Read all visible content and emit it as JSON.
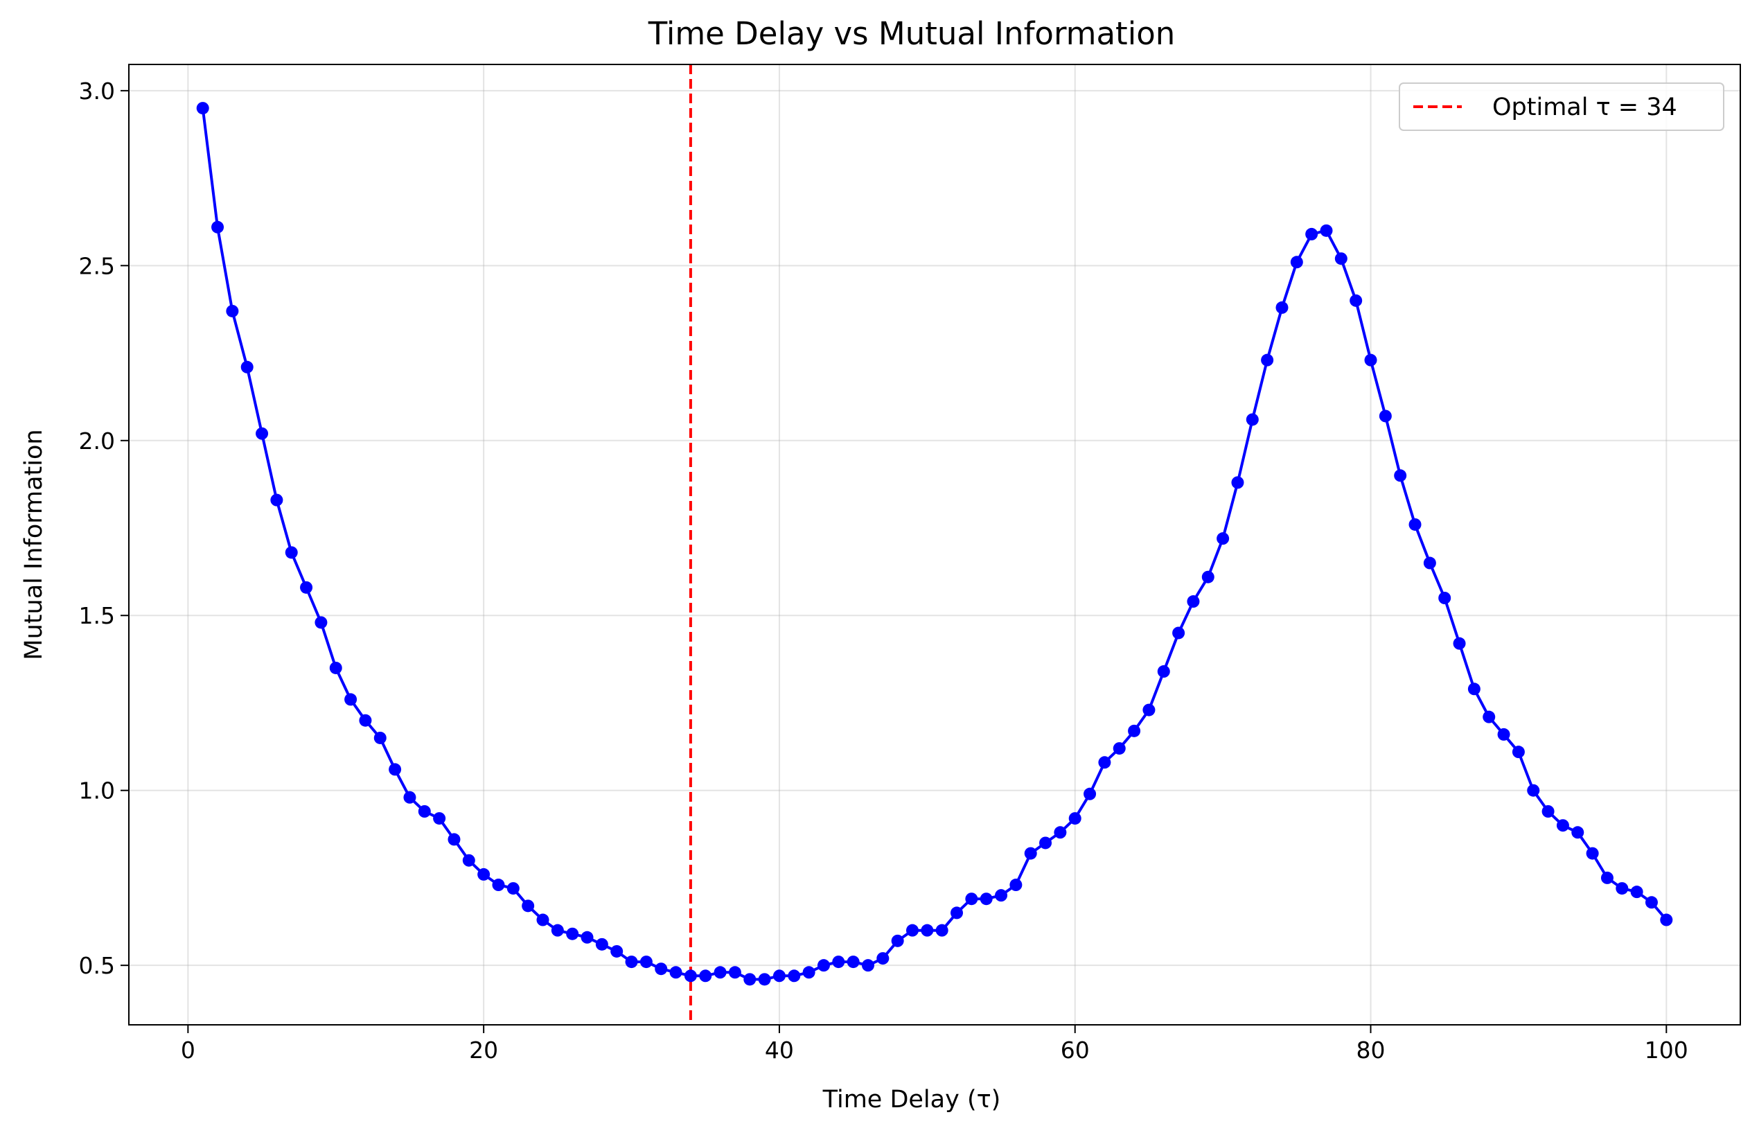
{
  "chart_data": {
    "type": "line",
    "title": "Time Delay vs Mutual Information",
    "xlabel": "Time Delay (τ)",
    "ylabel": "Mutual Information",
    "xlim": [
      -4,
      105
    ],
    "ylim": [
      0.33,
      3.075
    ],
    "xticks": [
      0,
      20,
      40,
      60,
      80,
      100
    ],
    "yticks": [
      0.5,
      1.0,
      1.5,
      2.0,
      2.5,
      3.0
    ],
    "xtick_labels": [
      "0",
      "20",
      "40",
      "60",
      "80",
      "100"
    ],
    "ytick_labels": [
      "0.5",
      "1.0",
      "1.5",
      "2.0",
      "2.5",
      "3.0"
    ],
    "grid": true,
    "legend_position": "top-right",
    "series": [
      {
        "color": "#0000ff",
        "marker": "circle",
        "x": [
          1,
          2,
          3,
          4,
          5,
          6,
          7,
          8,
          9,
          10,
          11,
          12,
          13,
          14,
          15,
          16,
          17,
          18,
          19,
          20,
          21,
          22,
          23,
          24,
          25,
          26,
          27,
          28,
          29,
          30,
          31,
          32,
          33,
          34,
          35,
          36,
          37,
          38,
          39,
          40,
          41,
          42,
          43,
          44,
          45,
          46,
          47,
          48,
          49,
          50,
          51,
          52,
          53,
          54,
          55,
          56,
          57,
          58,
          59,
          60,
          61,
          62,
          63,
          64,
          65,
          66,
          67,
          68,
          69,
          70,
          71,
          72,
          73,
          74,
          75,
          76,
          77,
          78,
          79,
          80,
          81,
          82,
          83,
          84,
          85,
          86,
          87,
          88,
          89,
          90,
          91,
          92,
          93,
          94,
          95,
          96,
          97,
          98,
          99,
          100
        ],
        "y": [
          2.95,
          2.61,
          2.37,
          2.21,
          2.02,
          1.83,
          1.68,
          1.58,
          1.48,
          1.35,
          1.26,
          1.2,
          1.15,
          1.06,
          0.98,
          0.94,
          0.92,
          0.86,
          0.8,
          0.76,
          0.73,
          0.72,
          0.67,
          0.63,
          0.6,
          0.59,
          0.58,
          0.56,
          0.54,
          0.51,
          0.51,
          0.49,
          0.48,
          0.47,
          0.47,
          0.48,
          0.48,
          0.46,
          0.46,
          0.47,
          0.47,
          0.48,
          0.5,
          0.51,
          0.51,
          0.5,
          0.52,
          0.57,
          0.6,
          0.6,
          0.6,
          0.65,
          0.69,
          0.69,
          0.7,
          0.73,
          0.82,
          0.85,
          0.88,
          0.92,
          0.99,
          1.08,
          1.12,
          1.17,
          1.23,
          1.34,
          1.45,
          1.54,
          1.61,
          1.72,
          1.88,
          2.06,
          2.23,
          2.38,
          2.51,
          2.59,
          2.6,
          2.52,
          2.4,
          2.23,
          2.07,
          1.9,
          1.76,
          1.65,
          1.55,
          1.42,
          1.29,
          1.21,
          1.16,
          1.11,
          1.0,
          0.94,
          0.9,
          0.88,
          0.82,
          0.75,
          0.72,
          0.71,
          0.68,
          0.63
        ]
      },
      {
        "name": "Optimal τ = 34",
        "type": "vline",
        "x": 34,
        "color": "#ff0000",
        "style": "dashed"
      }
    ]
  }
}
